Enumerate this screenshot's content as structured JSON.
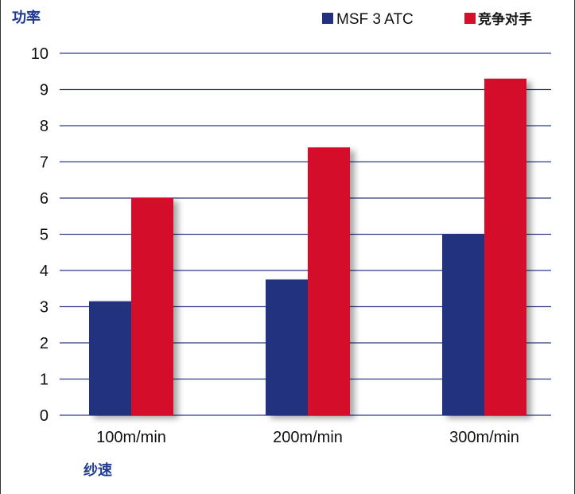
{
  "chart_data": {
    "type": "bar",
    "ylabel": "功率",
    "xlabel": "纱速",
    "categories": [
      "100m/min",
      "200m/min",
      "300m/min"
    ],
    "series": [
      {
        "name": "MSF 3 ATC",
        "color": "#23307f",
        "values": [
          3.15,
          3.75,
          5.0
        ]
      },
      {
        "name": "竞争对手",
        "color": "#d4112a",
        "values": [
          6.0,
          7.4,
          9.3
        ]
      }
    ],
    "ylim": [
      0,
      10
    ],
    "yticks": [
      0,
      1,
      2,
      3,
      4,
      5,
      6,
      7,
      8,
      9,
      10
    ],
    "grid": true,
    "gridline_color": "#2c3a8c",
    "legend_position": "top-right"
  }
}
